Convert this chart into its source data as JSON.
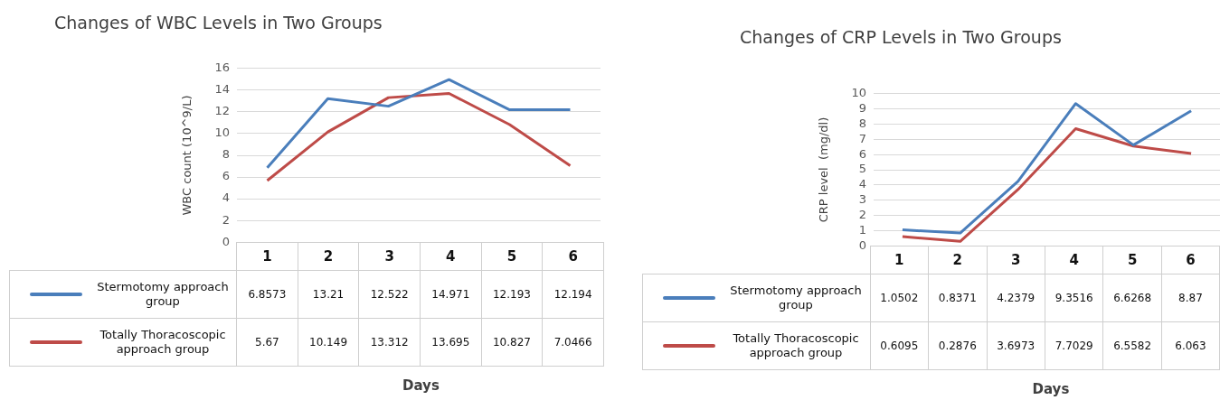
{
  "chart_data": [
    {
      "type": "line",
      "title": "Changes of WBC Levels in Two Groups",
      "xlabel": "Days",
      "ylabel": "WBC count (10^9/L)",
      "categories": [
        "1",
        "2",
        "3",
        "4",
        "5",
        "6"
      ],
      "series": [
        {
          "name": "Stermotomy approach group",
          "color": "#4a7ebb",
          "values": [
            6.8573,
            13.21,
            12.522,
            14.971,
            12.193,
            12.194
          ]
        },
        {
          "name": "Totally Thoracoscopic approach group",
          "color": "#be4b48",
          "values": [
            5.67,
            10.149,
            13.312,
            13.695,
            10.827,
            7.0466
          ]
        }
      ],
      "ylim": [
        0,
        16
      ],
      "yticks": [
        0,
        2,
        4,
        6,
        8,
        10,
        12,
        14,
        16
      ],
      "grid": "y",
      "legend": "bottom",
      "data_labels": true,
      "marker": "none"
    },
    {
      "type": "line",
      "title": "Changes of CRP Levels in Two Groups",
      "xlabel": "Days",
      "ylabel": "CRP level  (mg/dl)",
      "categories": [
        "1",
        "2",
        "3",
        "4",
        "5",
        "6"
      ],
      "series": [
        {
          "name": "Stermotomy approach group",
          "color": "#4a7ebb",
          "values": [
            1.0502,
            0.8371,
            4.2379,
            9.3516,
            6.6268,
            8.87
          ]
        },
        {
          "name": "Totally Thoracoscopic approach group",
          "color": "#be4b48",
          "values": [
            0.6095,
            0.2876,
            3.6973,
            7.7029,
            6.5582,
            6.063
          ]
        }
      ],
      "ylim": [
        0,
        10
      ],
      "yticks": [
        0,
        1,
        2,
        3,
        4,
        5,
        6,
        7,
        8,
        9,
        10
      ],
      "grid": "y",
      "legend": "bottom",
      "data_labels": true,
      "marker": "none"
    }
  ]
}
